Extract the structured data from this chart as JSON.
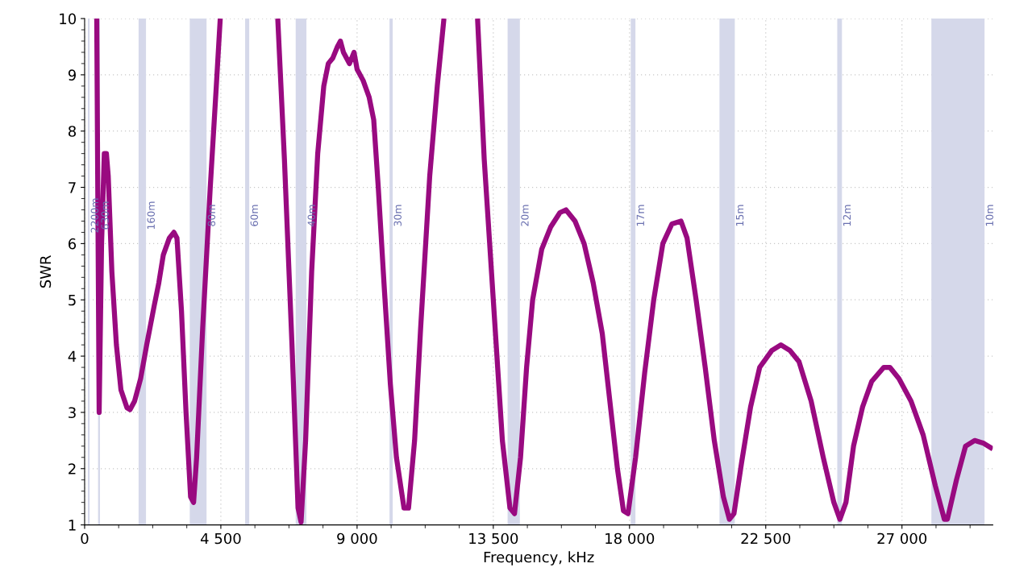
{
  "chart_data": {
    "type": "line",
    "xlabel": "Frequency, kHz",
    "ylabel": "SWR",
    "x": [
      400,
      480,
      560,
      650,
      720,
      780,
      900,
      1050,
      1200,
      1400,
      1500,
      1650,
      1850,
      2050,
      2300,
      2450,
      2600,
      2800,
      2950,
      3050,
      3200,
      3350,
      3500,
      3600,
      3700,
      3900,
      4150,
      4350,
      4480,
      5400,
      6380,
      6600,
      6850,
      7050,
      7150,
      7300,
      7500,
      7700,
      7900,
      8050,
      8200,
      8350,
      8450,
      8550,
      8750,
      8900,
      9000,
      9200,
      9400,
      9550,
      9700,
      9900,
      10100,
      10300,
      10550,
      10700,
      10900,
      11100,
      11400,
      11650,
      11870,
      12400,
      12980,
      13200,
      13500,
      13800,
      14050,
      14200,
      14400,
      14600,
      14800,
      15100,
      15400,
      15700,
      15900,
      16200,
      16500,
      16800,
      17100,
      17350,
      17600,
      17800,
      17950,
      18200,
      18500,
      18800,
      19100,
      19400,
      19700,
      19900,
      20200,
      20500,
      20800,
      21100,
      21300,
      21450,
      21700,
      22000,
      22300,
      22700,
      23000,
      23300,
      23600,
      24000,
      24400,
      24750,
      24950,
      25150,
      25400,
      25700,
      26000,
      26400,
      26600,
      26900,
      27300,
      27700,
      28100,
      28400,
      28500,
      28800,
      29100,
      29400,
      29700,
      30000
    ],
    "series": [
      {
        "color": "#990a80",
        "values": [
          10,
          3.0,
          6,
          7.6,
          7.6,
          7.2,
          5.5,
          4.2,
          3.4,
          3.08,
          3.05,
          3.2,
          3.6,
          4.2,
          4.9,
          5.3,
          5.8,
          6.1,
          6.2,
          6.1,
          4.8,
          3.0,
          1.5,
          1.4,
          2.2,
          4.5,
          7.0,
          8.8,
          10,
          null,
          10,
          7.5,
          4.2,
          1.3,
          1.05,
          2.5,
          5.5,
          7.6,
          8.8,
          9.2,
          9.3,
          9.5,
          9.6,
          9.4,
          9.2,
          9.4,
          9.1,
          8.9,
          8.6,
          8.2,
          7.0,
          5.2,
          3.5,
          2.2,
          1.3,
          1.3,
          2.5,
          4.5,
          7.2,
          8.8,
          10,
          null,
          10,
          7.5,
          5.0,
          2.5,
          1.3,
          1.2,
          2.2,
          3.8,
          5.0,
          5.9,
          6.3,
          6.55,
          6.6,
          6.4,
          6.0,
          5.3,
          4.4,
          3.2,
          2.0,
          1.25,
          1.2,
          2.2,
          3.7,
          5.0,
          6.0,
          6.35,
          6.4,
          6.1,
          5.0,
          3.8,
          2.5,
          1.5,
          1.1,
          1.2,
          2.1,
          3.1,
          3.8,
          4.1,
          4.2,
          4.1,
          3.9,
          3.2,
          2.2,
          1.4,
          1.1,
          1.4,
          2.4,
          3.1,
          3.55,
          3.8,
          3.8,
          3.6,
          3.2,
          2.6,
          1.7,
          1.1,
          1.1,
          1.8,
          2.4,
          2.5,
          2.45,
          2.35
        ]
      }
    ],
    "xlim": [
      0,
      30000
    ],
    "xticks": [
      0,
      {
        "value": 4500,
        "label": "4 500"
      },
      {
        "value": 9000,
        "label": "9 000"
      },
      {
        "value": 13500,
        "label": "13 500"
      },
      {
        "value": 18000,
        "label": "18 000"
      },
      {
        "value": 22500,
        "label": "22 500"
      },
      {
        "value": 27000,
        "label": "27 000"
      }
    ],
    "ylim": [
      1,
      10
    ],
    "yticks": [
      1,
      2,
      3,
      4,
      5,
      6,
      7,
      8,
      9,
      10
    ],
    "bands": [
      {
        "axis": "x",
        "from": 135.7,
        "to": 137.8,
        "label": "2200m",
        "color": "#d5d8ea"
      },
      {
        "axis": "x",
        "from": 472,
        "to": 479,
        "label": "630m",
        "color": "#d5d8ea"
      },
      {
        "axis": "x",
        "from": 1810,
        "to": 2000,
        "label": "160m",
        "color": "#d5d8ea"
      },
      {
        "axis": "x",
        "from": 3500,
        "to": 4000,
        "label": "80m",
        "color": "#d5d8ea"
      },
      {
        "axis": "x",
        "from": 5330,
        "to": 5410,
        "label": "60m",
        "color": "#d5d8ea"
      },
      {
        "axis": "x",
        "from": 7000,
        "to": 7300,
        "label": "40m",
        "color": "#d5d8ea"
      },
      {
        "axis": "x",
        "from": 10100,
        "to": 10150,
        "label": "30m",
        "color": "#d5d8ea"
      },
      {
        "axis": "x",
        "from": 14000,
        "to": 14350,
        "label": "20m",
        "color": "#d5d8ea"
      },
      {
        "axis": "x",
        "from": 18068,
        "to": 18168,
        "label": "17m",
        "color": "#d5d8ea"
      },
      {
        "axis": "x",
        "from": 21000,
        "to": 21450,
        "label": "15m",
        "color": "#d5d8ea"
      },
      {
        "axis": "x",
        "from": 24890,
        "to": 24990,
        "label": "12m",
        "color": "#d5d8ea"
      },
      {
        "axis": "x",
        "from": 28000,
        "to": 29700,
        "label": "10m",
        "color": "#d5d8ea"
      }
    ],
    "grid": true,
    "marker": "none",
    "line_style": "solid"
  }
}
